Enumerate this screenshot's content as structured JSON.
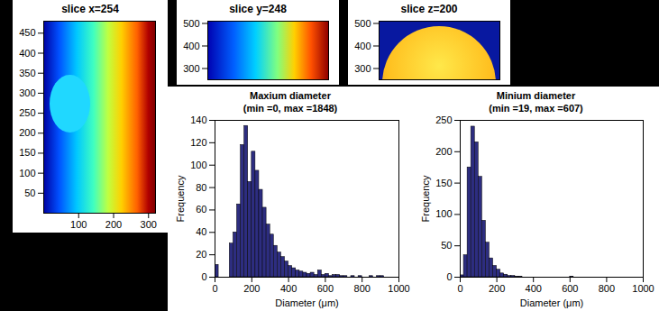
{
  "chart_data": [
    {
      "type": "image",
      "title": "slice x=254",
      "xlim": [
        0,
        320
      ],
      "xticks": [
        100,
        200,
        300
      ],
      "ylim": [
        0,
        480
      ],
      "yticks": [
        50,
        100,
        150,
        200,
        250,
        300,
        350,
        400,
        450
      ]
    },
    {
      "type": "image",
      "title": "slice y=248",
      "ylim": [
        250,
        510
      ],
      "yticks": [
        300,
        400,
        500
      ],
      "tick_labels": "y"
    },
    {
      "type": "image",
      "title": "slice z=200",
      "ylim": [
        250,
        510
      ],
      "yticks": [
        300,
        400,
        500
      ],
      "tick_labels": "y"
    },
    {
      "type": "histogram",
      "title": "Maxium diameter",
      "subtitle": "(min =0, max =1848)",
      "x_label": "Diameter (μm)",
      "y_label": "Frequency",
      "color": "#2d2d80",
      "bins": [
        0,
        20,
        40,
        60,
        80,
        100,
        120,
        140,
        160,
        180,
        200,
        220,
        240,
        260,
        280,
        300,
        320,
        340,
        360,
        380,
        400,
        420,
        440,
        460,
        480,
        500,
        520,
        540,
        560,
        580,
        600,
        620,
        640,
        660,
        680,
        700,
        720,
        740,
        760,
        780,
        800,
        820,
        840,
        860,
        880,
        900,
        920,
        940,
        960,
        980,
        1000
      ],
      "values": [
        11,
        0,
        0,
        0,
        30,
        40,
        65,
        118,
        135,
        85,
        112,
        95,
        78,
        62,
        47,
        38,
        28,
        22,
        18,
        14,
        10,
        8,
        6,
        5,
        4,
        3,
        4,
        2,
        6,
        2,
        3,
        1,
        2,
        2,
        1,
        1,
        0,
        1,
        0,
        1,
        0,
        0,
        1,
        0,
        1,
        1,
        0,
        0,
        0,
        0
      ],
      "xlim": [
        0,
        1000
      ],
      "xticks": [
        0,
        200,
        400,
        600,
        800,
        1000
      ],
      "ylim": [
        0,
        140
      ],
      "yticks": [
        0,
        20,
        40,
        60,
        80,
        100,
        120,
        140
      ]
    },
    {
      "type": "histogram",
      "title": "Minium diameter",
      "subtitle": "(min =19, max =607)",
      "x_label": "Diameter (μm)",
      "y_label": "Frequency",
      "color": "#2d2d80",
      "bins": [
        0,
        20,
        40,
        60,
        80,
        100,
        120,
        140,
        160,
        180,
        200,
        220,
        240,
        260,
        280,
        300,
        320,
        340,
        360,
        380,
        400,
        420,
        440,
        460,
        480,
        500,
        520,
        540,
        560,
        580,
        600,
        620,
        640,
        660,
        680,
        700,
        720,
        740,
        760,
        780,
        800,
        820,
        840,
        860,
        880,
        900,
        920,
        940,
        960,
        980,
        1000
      ],
      "values": [
        3,
        35,
        175,
        240,
        215,
        160,
        90,
        55,
        30,
        18,
        12,
        6,
        4,
        2,
        2,
        1,
        1,
        0,
        0,
        0,
        0,
        0,
        0,
        0,
        0,
        0,
        0,
        0,
        0,
        0,
        1,
        0,
        0,
        0,
        0,
        0,
        0,
        0,
        0,
        0,
        0,
        0,
        0,
        0,
        0,
        0,
        0,
        0,
        0,
        0
      ],
      "xlim": [
        0,
        1000
      ],
      "xticks": [
        0,
        200,
        400,
        600,
        800,
        1000
      ],
      "ylim": [
        0,
        250
      ],
      "yticks": [
        0,
        50,
        100,
        150,
        200,
        250
      ]
    }
  ]
}
